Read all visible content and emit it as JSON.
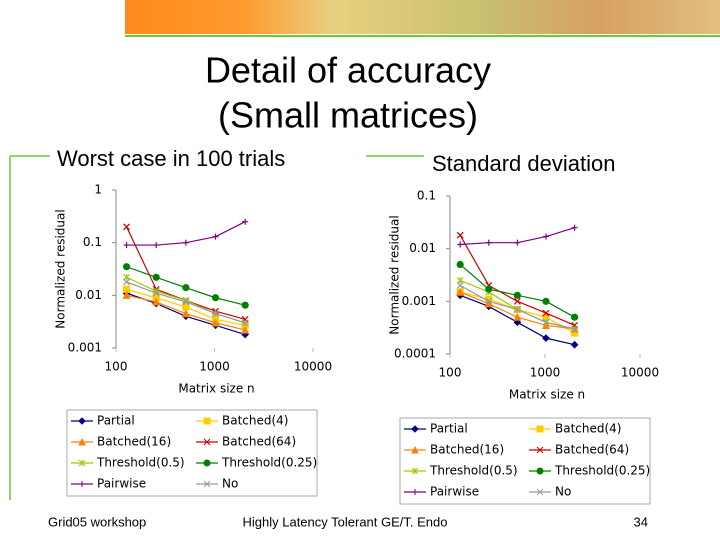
{
  "slide_title": [
    "Detail of accuracy",
    "(Small matrices)"
  ],
  "footer": {
    "left": "Grid05 workshop",
    "center": "Highly Latency Tolerant GE/T. Endo",
    "page": "34"
  },
  "chart_data": [
    {
      "type": "line",
      "title": "Worst case in 100 trials",
      "xlabel": "Matrix size n",
      "ylabel": "Normalized residual",
      "xscale": "log",
      "yscale": "log",
      "xlim": [
        100,
        10000
      ],
      "ylim": [
        0.001,
        1
      ],
      "xticks": [
        100,
        1000,
        10000
      ],
      "yticks": [
        0.001,
        0.01,
        0.1,
        1
      ],
      "legend": "bottom",
      "x": [
        128,
        256,
        512,
        1024,
        2048
      ],
      "series": [
        {
          "name": "Partial",
          "color": "#000080",
          "marker": "diamond",
          "values": [
            0.011,
            0.007,
            0.004,
            0.0027,
            0.0018
          ]
        },
        {
          "name": "Batched(4)",
          "color": "#ffcc00",
          "marker": "square",
          "values": [
            0.013,
            0.009,
            0.006,
            0.0035,
            0.0027
          ]
        },
        {
          "name": "Batched(16)",
          "color": "#ff8000",
          "marker": "triangle",
          "values": [
            0.01,
            0.0075,
            0.0045,
            0.003,
            0.0022
          ]
        },
        {
          "name": "Batched(64)",
          "color": "#cc0000",
          "marker": "x",
          "values": [
            0.2,
            0.013,
            0.008,
            0.005,
            0.0035
          ]
        },
        {
          "name": "Threshold(0.5)",
          "color": "#99cc00",
          "marker": "asterisk",
          "values": [
            0.022,
            0.012,
            0.008,
            0.0045,
            0.003
          ]
        },
        {
          "name": "Threshold(0.25)",
          "color": "#008000",
          "marker": "circle",
          "values": [
            0.035,
            0.022,
            0.014,
            0.009,
            0.0065
          ]
        },
        {
          "name": "Pairwise",
          "color": "#800080",
          "marker": "plus",
          "values": [
            0.09,
            0.09,
            0.1,
            0.13,
            0.25
          ]
        },
        {
          "name": "No",
          "color": "#999999",
          "marker": "x",
          "values": [
            0.018,
            0.011,
            0.0075,
            0.0045,
            0.003
          ]
        }
      ]
    },
    {
      "type": "line",
      "title": "Standard deviation",
      "xlabel": "Matrix size n",
      "ylabel": "Normalized residual",
      "xscale": "log",
      "yscale": "log",
      "xlim": [
        100,
        10000
      ],
      "ylim": [
        0.0001,
        0.1
      ],
      "xticks": [
        100,
        1000,
        10000
      ],
      "yticks": [
        0.0001,
        0.001,
        0.01,
        0.1
      ],
      "legend": "bottom",
      "x": [
        128,
        256,
        512,
        1024,
        2048
      ],
      "series": [
        {
          "name": "Partial",
          "color": "#000080",
          "marker": "diamond",
          "values": [
            0.0013,
            0.0008,
            0.0004,
            0.0002,
            0.00015
          ]
        },
        {
          "name": "Batched(4)",
          "color": "#ffcc00",
          "marker": "square",
          "values": [
            0.0015,
            0.0011,
            0.0007,
            0.0005,
            0.00025
          ]
        },
        {
          "name": "Batched(16)",
          "color": "#ff8000",
          "marker": "triangle",
          "values": [
            0.0015,
            0.0009,
            0.0005,
            0.00035,
            0.0003
          ]
        },
        {
          "name": "Batched(64)",
          "color": "#cc0000",
          "marker": "x",
          "values": [
            0.018,
            0.002,
            0.001,
            0.0006,
            0.00035
          ]
        },
        {
          "name": "Threshold(0.5)",
          "color": "#99cc00",
          "marker": "asterisk",
          "values": [
            0.0025,
            0.0015,
            0.0007,
            0.0004,
            0.0003
          ]
        },
        {
          "name": "Threshold(0.25)",
          "color": "#008000",
          "marker": "circle",
          "values": [
            0.005,
            0.0017,
            0.0013,
            0.001,
            0.0005
          ]
        },
        {
          "name": "Pairwise",
          "color": "#800080",
          "marker": "plus",
          "values": [
            0.012,
            0.013,
            0.013,
            0.017,
            0.025
          ]
        },
        {
          "name": "No",
          "color": "#999999",
          "marker": "x",
          "values": [
            0.002,
            0.001,
            0.0007,
            0.0004,
            0.0003
          ]
        }
      ]
    }
  ]
}
